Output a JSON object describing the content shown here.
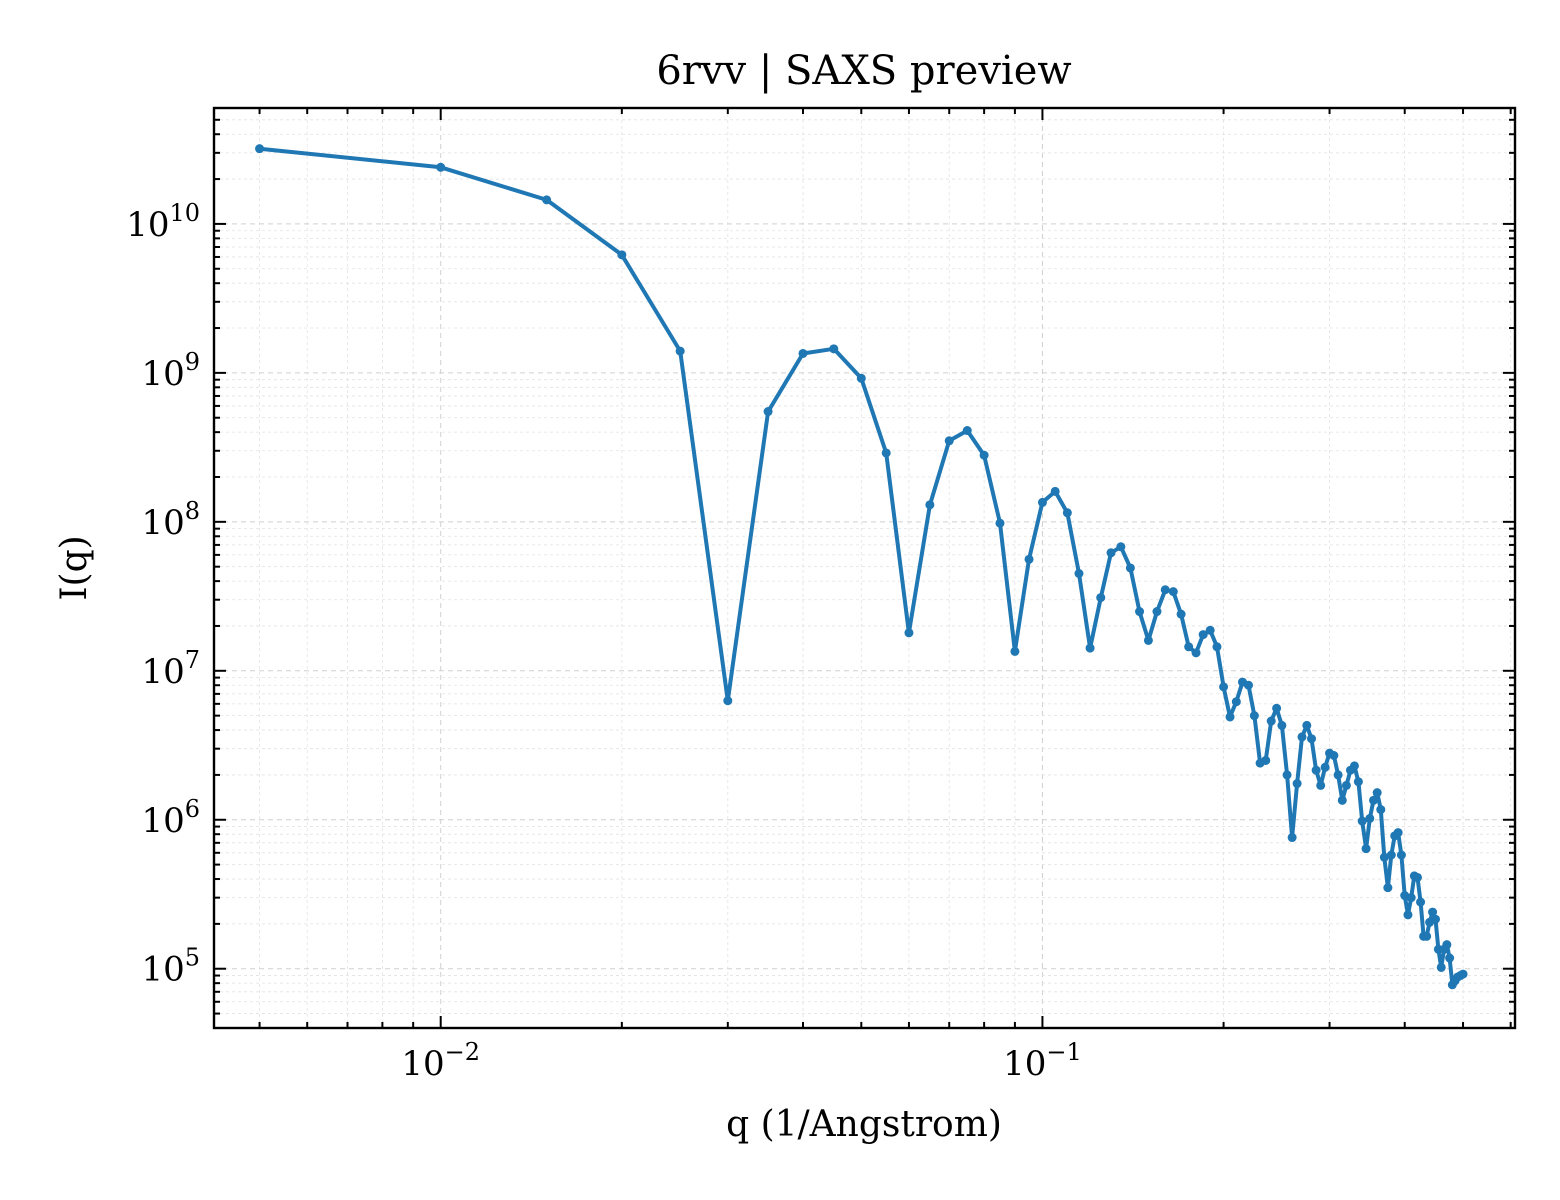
{
  "chart_data": {
    "type": "line",
    "title": "6rvv | SAXS preview",
    "xlabel": "q (1/Angstrom)",
    "ylabel": "I(q)",
    "xscale": "log",
    "yscale": "log",
    "xlim": [
      0.0042,
      0.61
    ],
    "ylim": [
      40000,
      60000000000
    ],
    "grid": true,
    "line_color": "#1f77b4",
    "x_ticks": [
      {
        "value": 0.01,
        "base": "10",
        "exp": "−2"
      },
      {
        "value": 0.1,
        "base": "10",
        "exp": "−1"
      }
    ],
    "y_ticks": [
      {
        "value": 100000,
        "base": "10",
        "exp": "5"
      },
      {
        "value": 1000000,
        "base": "10",
        "exp": "6"
      },
      {
        "value": 10000000,
        "base": "10",
        "exp": "7"
      },
      {
        "value": 100000000,
        "base": "10",
        "exp": "8"
      },
      {
        "value": 1000000000,
        "base": "10",
        "exp": "9"
      },
      {
        "value": 10000000000,
        "base": "10",
        "exp": "10"
      }
    ],
    "series": [
      {
        "x": [
          0.005,
          0.01,
          0.015,
          0.02,
          0.025,
          0.03,
          0.035,
          0.04,
          0.045,
          0.05,
          0.055,
          0.06,
          0.065,
          0.07,
          0.075,
          0.08,
          0.085,
          0.09,
          0.095,
          0.1,
          0.105,
          0.11,
          0.115,
          0.12,
          0.125,
          0.13,
          0.135,
          0.14,
          0.145,
          0.15,
          0.155,
          0.16,
          0.165,
          0.17,
          0.175,
          0.18,
          0.185,
          0.19,
          0.195,
          0.2,
          0.205,
          0.21,
          0.215,
          0.22,
          0.225,
          0.23,
          0.235,
          0.24,
          0.245,
          0.25,
          0.255,
          0.26,
          0.265,
          0.27,
          0.275,
          0.28,
          0.285,
          0.29,
          0.295,
          0.3,
          0.305,
          0.31,
          0.315,
          0.32,
          0.325,
          0.33,
          0.335,
          0.34,
          0.345,
          0.35,
          0.355,
          0.36,
          0.365,
          0.37,
          0.375,
          0.38,
          0.385,
          0.39,
          0.395,
          0.4,
          0.405,
          0.41,
          0.415,
          0.42,
          0.425,
          0.43,
          0.435,
          0.44,
          0.445,
          0.45,
          0.455,
          0.46,
          0.465,
          0.47,
          0.475,
          0.48,
          0.485,
          0.49,
          0.495,
          0.5
        ],
        "y": [
          32000000000,
          24000000000,
          14500000000,
          6200000000,
          1400000000,
          6300000,
          550000000,
          1350000000,
          1450000000,
          920000000,
          290000000,
          18000000,
          130000000,
          350000000,
          410000000,
          280000000,
          98000000,
          13500000,
          56000000,
          135000000,
          160000000,
          115000000,
          45000000,
          14200000,
          31000000,
          62000000,
          68000000,
          49000000,
          25000000,
          16000000,
          25000000,
          35000000,
          34000000,
          24000000,
          14500000,
          13200000,
          17500000,
          18700000,
          14500000,
          7800000,
          4900000,
          6200000,
          8400000,
          8000000,
          5000000,
          2400000,
          2500000,
          4600000,
          5600000,
          4300000,
          2000000,
          760000,
          1750000,
          3600000,
          4300000,
          3500000,
          2150000,
          1700000,
          2250000,
          2800000,
          2700000,
          2000000,
          1350000,
          1700000,
          2150000,
          2300000,
          1800000,
          980000,
          640000,
          1020000,
          1350000,
          1520000,
          1170000,
          560000,
          350000,
          580000,
          780000,
          820000,
          580000,
          310000,
          230000,
          300000,
          420000,
          410000,
          280000,
          165000,
          165000,
          205000,
          240000,
          215000,
          135000,
          102000,
          135000,
          145000,
          118000,
          78000,
          83000,
          88000,
          90000,
          92000
        ]
      }
    ]
  }
}
